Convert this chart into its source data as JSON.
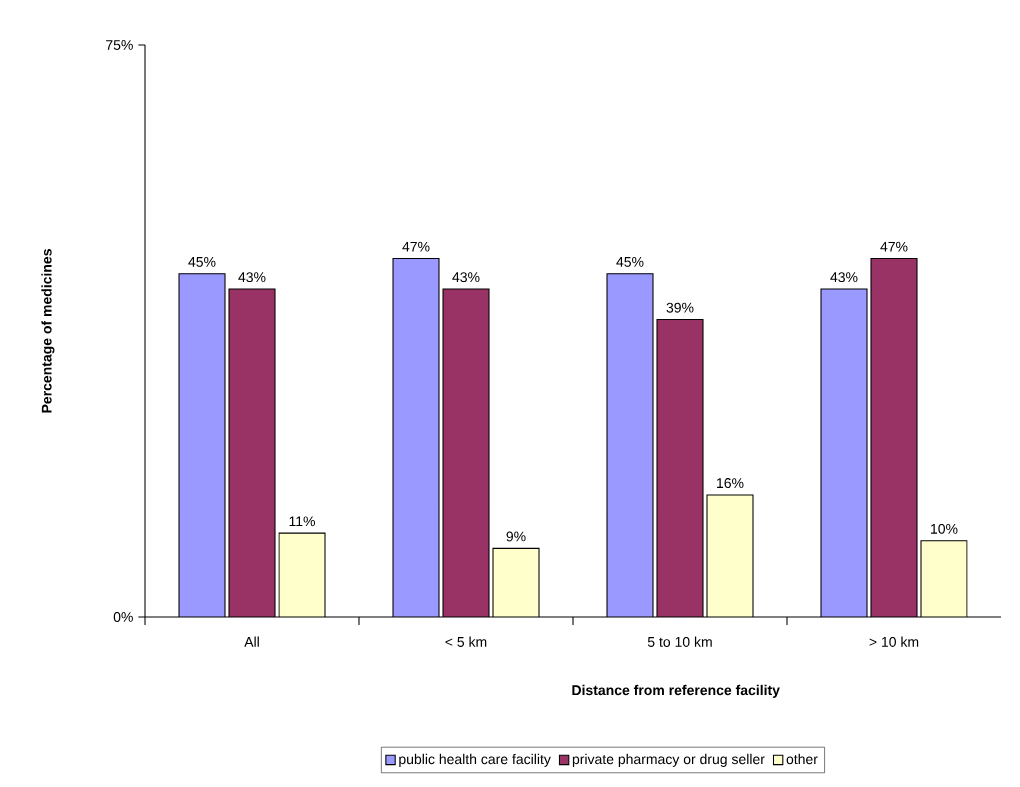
{
  "chart_data": {
    "type": "bar",
    "xlabel": "Distance from reference facility",
    "ylabel": "Percentage of medicines",
    "categories": [
      "All",
      "< 5 km",
      "5 to 10 km",
      "> 10 km"
    ],
    "series": [
      {
        "name": "public health care facility",
        "color": "#9999ff",
        "values": [
          45,
          47,
          45,
          43
        ],
        "value_labels": [
          "45%",
          "47%",
          "45%",
          "43%"
        ]
      },
      {
        "name": "private pharmacy or drug seller",
        "color": "#993366",
        "values": [
          43,
          43,
          39,
          47
        ],
        "value_labels": [
          "43%",
          "43%",
          "39%",
          "47%"
        ]
      },
      {
        "name": "other",
        "color": "#ffffcc",
        "values": [
          11,
          9,
          16,
          10
        ],
        "value_labels": [
          "11%",
          "9%",
          "16%",
          "10%"
        ]
      }
    ],
    "ylim": [
      0,
      75
    ],
    "yticks": [
      {
        "value": 0,
        "label": "0%"
      },
      {
        "value": 75,
        "label": "75%"
      }
    ],
    "legend": "bottom"
  }
}
